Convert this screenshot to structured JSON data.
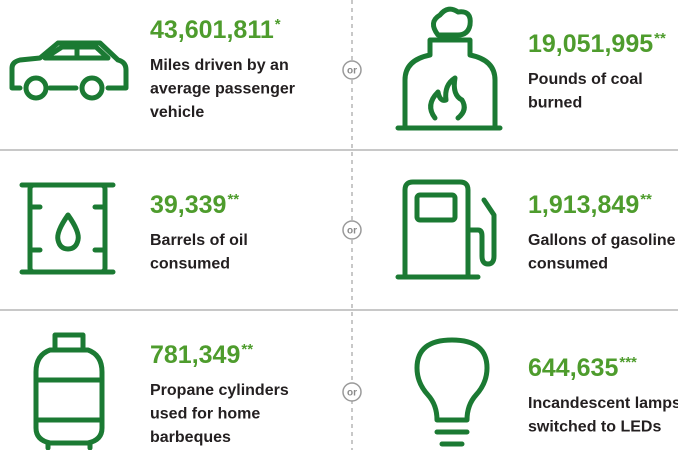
{
  "items": [
    {
      "number": "43,601,811",
      "note": "*",
      "label": [
        "Miles driven by an",
        "average passenger",
        "vehicle"
      ]
    },
    {
      "number": "19,051,995",
      "note": "**",
      "label": [
        "Pounds of coal",
        "burned"
      ]
    },
    {
      "number": "39,339",
      "note": "**",
      "label": [
        "Barrels of oil",
        "consumed"
      ]
    },
    {
      "number": "1,913,849",
      "note": "**",
      "label": [
        "Gallons of gasoline",
        "consumed"
      ]
    },
    {
      "number": "781,349",
      "note": "**",
      "label": [
        "Propane cylinders",
        "used for home",
        "barbeques"
      ]
    },
    {
      "number": "644,635",
      "note": "***",
      "label": [
        "Incandescent lamps",
        "switched to LEDs"
      ]
    }
  ],
  "separator": "or"
}
